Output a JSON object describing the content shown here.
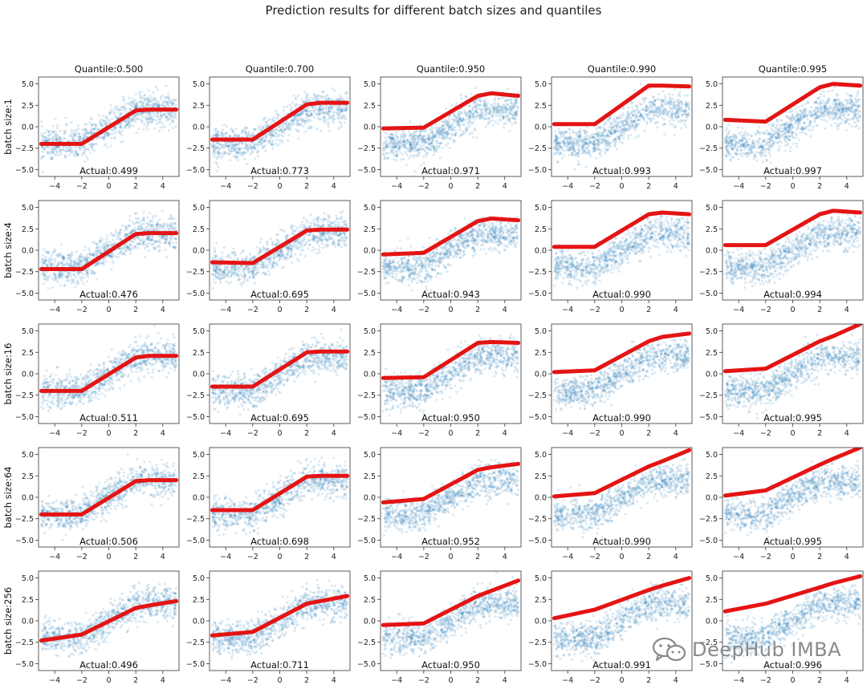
{
  "title": "Prediction results for different batch sizes and quantiles",
  "watermark": {
    "text": "DeepHub IMBA",
    "icon": "wechat-icon"
  },
  "colors": {
    "scatter": "#1f77b4",
    "prediction": "#e41414",
    "axes": "#333333"
  },
  "chart_data": {
    "type": "scatter",
    "layout": "grid-5x5",
    "column_labels": [
      "Quantile:0.500",
      "Quantile:0.700",
      "Quantile:0.950",
      "Quantile:0.990",
      "Quantile:0.995"
    ],
    "row_labels": [
      "batch size:1",
      "batch size:4",
      "batch size:16",
      "batch size:64",
      "batch size:256"
    ],
    "xlim": [
      -5.2,
      5.2
    ],
    "ylim": [
      -5.8,
      5.8
    ],
    "x_ticks": [
      -4,
      -2,
      0,
      2,
      4
    ],
    "y_ticks": [
      -5.0,
      -2.5,
      0.0,
      2.5,
      5.0
    ],
    "x_tick_labels": [
      "−4",
      "−2",
      "0",
      "2",
      "4"
    ],
    "y_tick_labels": [
      "−5.0",
      "−2.5",
      "0.0",
      "2.5",
      "5.0"
    ],
    "scatter_series": {
      "name": "",
      "description_of_truth_curve": "y = clip(x, -2, 2) plus noise",
      "x_range": [
        -5,
        5
      ]
    },
    "prediction_x": [
      -5,
      -2,
      2,
      3,
      5
    ],
    "panels": [
      [
        {
          "actual": "Actual:0.499",
          "pred_y": [
            -2.0,
            -2.0,
            1.9,
            2.0,
            2.0
          ]
        },
        {
          "actual": "Actual:0.773",
          "pred_y": [
            -1.5,
            -1.5,
            2.6,
            2.8,
            2.8
          ]
        },
        {
          "actual": "Actual:0.971",
          "pred_y": [
            -0.2,
            -0.1,
            3.6,
            3.9,
            3.6
          ]
        },
        {
          "actual": "Actual:0.993",
          "pred_y": [
            0.3,
            0.3,
            4.8,
            4.8,
            4.7
          ]
        },
        {
          "actual": "Actual:0.997",
          "pred_y": [
            0.8,
            0.6,
            4.6,
            5.0,
            4.8
          ]
        }
      ],
      [
        {
          "actual": "Actual:0.476",
          "pred_y": [
            -2.2,
            -2.2,
            1.9,
            2.0,
            2.0
          ]
        },
        {
          "actual": "Actual:0.695",
          "pred_y": [
            -1.4,
            -1.5,
            2.3,
            2.4,
            2.4
          ]
        },
        {
          "actual": "Actual:0.943",
          "pred_y": [
            -0.5,
            -0.3,
            3.4,
            3.7,
            3.5
          ]
        },
        {
          "actual": "Actual:0.990",
          "pred_y": [
            0.4,
            0.4,
            4.2,
            4.4,
            4.2
          ]
        },
        {
          "actual": "Actual:0.994",
          "pred_y": [
            0.6,
            0.6,
            4.2,
            4.6,
            4.4
          ]
        }
      ],
      [
        {
          "actual": "Actual:0.511",
          "pred_y": [
            -2.0,
            -2.0,
            1.9,
            2.1,
            2.1
          ]
        },
        {
          "actual": "Actual:0.695",
          "pred_y": [
            -1.5,
            -1.5,
            2.5,
            2.6,
            2.6
          ]
        },
        {
          "actual": "Actual:0.950",
          "pred_y": [
            -0.5,
            -0.4,
            3.6,
            3.7,
            3.6
          ]
        },
        {
          "actual": "Actual:0.990",
          "pred_y": [
            0.2,
            0.4,
            3.8,
            4.3,
            4.7
          ]
        },
        {
          "actual": "Actual:0.995",
          "pred_y": [
            0.3,
            0.6,
            3.8,
            4.4,
            5.8
          ]
        }
      ],
      [
        {
          "actual": "Actual:0.506",
          "pred_y": [
            -2.0,
            -2.0,
            1.9,
            2.0,
            2.0
          ]
        },
        {
          "actual": "Actual:0.698",
          "pred_y": [
            -1.5,
            -1.5,
            2.4,
            2.5,
            2.5
          ]
        },
        {
          "actual": "Actual:0.952",
          "pred_y": [
            -0.6,
            -0.2,
            3.2,
            3.5,
            3.9
          ]
        },
        {
          "actual": "Actual:0.990",
          "pred_y": [
            0.1,
            0.5,
            3.6,
            4.2,
            5.5
          ]
        },
        {
          "actual": "Actual:0.995",
          "pred_y": [
            0.2,
            0.8,
            3.8,
            4.5,
            5.8
          ]
        }
      ],
      [
        {
          "actual": "Actual:0.496",
          "pred_y": [
            -2.3,
            -1.6,
            1.5,
            1.8,
            2.3
          ]
        },
        {
          "actual": "Actual:0.711",
          "pred_y": [
            -1.7,
            -1.3,
            2.0,
            2.3,
            2.9
          ]
        },
        {
          "actual": "Actual:0.950",
          "pred_y": [
            -0.5,
            -0.3,
            2.9,
            3.5,
            4.7
          ]
        },
        {
          "actual": "Actual:0.991",
          "pred_y": [
            0.3,
            1.3,
            3.6,
            4.1,
            5.0
          ]
        },
        {
          "actual": "Actual:0.996",
          "pred_y": [
            1.1,
            2.0,
            3.9,
            4.4,
            5.2
          ]
        }
      ]
    ]
  }
}
